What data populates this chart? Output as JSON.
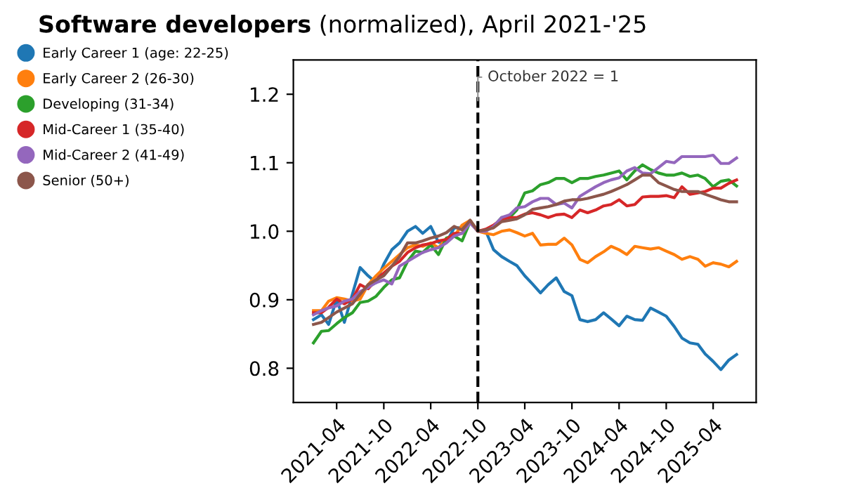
{
  "chart_data": {
    "type": "line",
    "title": "Software developers",
    "subtitle": "(normalized), April 2021-'25",
    "x": [
      "2021-01",
      "2021-02",
      "2021-03",
      "2021-04",
      "2021-05",
      "2021-06",
      "2021-07",
      "2021-08",
      "2021-09",
      "2021-10",
      "2021-11",
      "2021-12",
      "2022-01",
      "2022-02",
      "2022-03",
      "2022-04",
      "2022-05",
      "2022-06",
      "2022-07",
      "2022-08",
      "2022-09",
      "2022-10",
      "2022-11",
      "2022-12",
      "2023-01",
      "2023-02",
      "2023-03",
      "2023-04",
      "2023-05",
      "2023-06",
      "2023-07",
      "2023-08",
      "2023-09",
      "2023-10",
      "2023-11",
      "2023-12",
      "2024-01",
      "2024-02",
      "2024-03",
      "2024-04",
      "2024-05",
      "2024-06",
      "2024-07",
      "2024-08",
      "2024-09",
      "2024-10",
      "2024-11",
      "2024-12",
      "2025-01",
      "2025-02",
      "2025-03",
      "2025-04",
      "2025-05",
      "2025-06",
      "2025-07"
    ],
    "series": [
      {
        "name": "Early Career 1 (age: 22-25)",
        "color": "#1f77b4",
        "values": [
          0.871,
          0.878,
          0.864,
          0.901,
          0.867,
          0.908,
          0.947,
          0.935,
          0.925,
          0.952,
          0.973,
          0.983,
          1.0,
          1.007,
          0.997,
          1.007,
          0.984,
          0.984,
          1.005,
          1.005,
          1.016,
          1.0,
          1.0,
          0.973,
          0.963,
          0.956,
          0.95,
          0.935,
          0.923,
          0.91,
          0.922,
          0.932,
          0.912,
          0.906,
          0.871,
          0.868,
          0.871,
          0.881,
          0.872,
          0.862,
          0.876,
          0.871,
          0.87,
          0.888,
          0.882,
          0.876,
          0.861,
          0.844,
          0.837,
          0.835,
          0.821,
          0.81,
          0.798,
          0.812,
          0.82
        ]
      },
      {
        "name": "Early Career 2 (26-30)",
        "color": "#ff7f0e",
        "values": [
          0.884,
          0.884,
          0.898,
          0.903,
          0.901,
          0.898,
          0.901,
          0.922,
          0.935,
          0.946,
          0.956,
          0.966,
          0.976,
          0.98,
          0.978,
          0.983,
          0.976,
          0.99,
          0.993,
          1.009,
          1.016,
          1.0,
          0.997,
          0.995,
          1.0,
          1.002,
          0.998,
          0.993,
          0.997,
          0.98,
          0.981,
          0.981,
          0.99,
          0.98,
          0.959,
          0.954,
          0.963,
          0.97,
          0.978,
          0.973,
          0.966,
          0.978,
          0.976,
          0.974,
          0.976,
          0.971,
          0.966,
          0.959,
          0.963,
          0.959,
          0.949,
          0.954,
          0.952,
          0.948,
          0.956
        ]
      },
      {
        "name": "Developing (31-34)",
        "color": "#2ca02c",
        "values": [
          0.837,
          0.854,
          0.855,
          0.865,
          0.874,
          0.881,
          0.896,
          0.898,
          0.905,
          0.918,
          0.929,
          0.932,
          0.956,
          0.971,
          0.969,
          0.98,
          0.966,
          0.99,
          0.993,
          0.986,
          1.014,
          1.0,
          1.002,
          1.007,
          1.02,
          1.02,
          1.031,
          1.056,
          1.059,
          1.068,
          1.071,
          1.077,
          1.077,
          1.071,
          1.077,
          1.077,
          1.08,
          1.082,
          1.085,
          1.088,
          1.075,
          1.088,
          1.097,
          1.09,
          1.085,
          1.082,
          1.082,
          1.085,
          1.08,
          1.082,
          1.077,
          1.065,
          1.073,
          1.075,
          1.066
        ]
      },
      {
        "name": "Mid-Career 1 (35-40)",
        "color": "#d62728",
        "values": [
          0.881,
          0.881,
          0.889,
          0.901,
          0.894,
          0.901,
          0.922,
          0.916,
          0.929,
          0.939,
          0.949,
          0.956,
          0.969,
          0.976,
          0.98,
          0.982,
          0.986,
          0.988,
          0.997,
          0.997,
          1.014,
          1.0,
          1.003,
          1.009,
          1.017,
          1.02,
          1.02,
          1.025,
          1.027,
          1.024,
          1.02,
          1.024,
          1.025,
          1.02,
          1.031,
          1.027,
          1.031,
          1.037,
          1.039,
          1.046,
          1.037,
          1.039,
          1.05,
          1.051,
          1.051,
          1.052,
          1.049,
          1.065,
          1.054,
          1.056,
          1.058,
          1.063,
          1.063,
          1.07,
          1.075
        ]
      },
      {
        "name": "Mid-Career 2 (41-49)",
        "color": "#9467bd",
        "values": [
          0.878,
          0.884,
          0.888,
          0.891,
          0.898,
          0.901,
          0.912,
          0.918,
          0.925,
          0.929,
          0.923,
          0.949,
          0.956,
          0.963,
          0.969,
          0.973,
          0.976,
          0.983,
          0.993,
          0.997,
          1.012,
          1.0,
          1.0,
          1.007,
          1.02,
          1.024,
          1.034,
          1.036,
          1.043,
          1.048,
          1.048,
          1.039,
          1.041,
          1.034,
          1.051,
          1.058,
          1.065,
          1.071,
          1.075,
          1.078,
          1.088,
          1.093,
          1.085,
          1.084,
          1.093,
          1.102,
          1.1,
          1.109,
          1.109,
          1.109,
          1.109,
          1.111,
          1.099,
          1.099,
          1.107
        ]
      },
      {
        "name": "Senior (50+)",
        "color": "#8c564b",
        "values": [
          0.864,
          0.867,
          0.874,
          0.882,
          0.888,
          0.894,
          0.908,
          0.922,
          0.929,
          0.935,
          0.949,
          0.963,
          0.983,
          0.983,
          0.986,
          0.99,
          0.993,
          0.998,
          1.007,
          1.002,
          1.016,
          1.0,
          1.002,
          1.005,
          1.014,
          1.016,
          1.018,
          1.024,
          1.032,
          1.034,
          1.036,
          1.039,
          1.044,
          1.046,
          1.046,
          1.048,
          1.051,
          1.054,
          1.058,
          1.063,
          1.068,
          1.075,
          1.082,
          1.082,
          1.071,
          1.066,
          1.061,
          1.058,
          1.058,
          1.058,
          1.054,
          1.05,
          1.046,
          1.043,
          1.043
        ]
      }
    ],
    "xlim": [
      "2020-10-15",
      "2025-09-15"
    ],
    "xticks": [
      {
        "value": "2021-04",
        "label": "2021-04"
      },
      {
        "value": "2021-10",
        "label": "2021-10"
      },
      {
        "value": "2022-04",
        "label": "2022-04"
      },
      {
        "value": "2022-10",
        "label": "2022-10"
      },
      {
        "value": "2023-04",
        "label": "2023-04"
      },
      {
        "value": "2023-10",
        "label": "2023-10"
      },
      {
        "value": "2024-04",
        "label": "2024-04"
      },
      {
        "value": "2024-10",
        "label": "2024-10"
      },
      {
        "value": "2025-04",
        "label": "2025-04"
      }
    ],
    "ylim": [
      0.75,
      1.25
    ],
    "yticks": [
      {
        "value": 0.8,
        "label": "0.8"
      },
      {
        "value": 0.9,
        "label": "0.9"
      },
      {
        "value": 1.0,
        "label": "1.0"
      },
      {
        "value": 1.1,
        "label": "1.1"
      },
      {
        "value": 1.2,
        "label": "1.2"
      }
    ],
    "ref_lines": [
      {
        "axis": "x",
        "value": "2022-10",
        "label": "October 2022 = 1",
        "color": "#000000",
        "line_style": "dashed"
      }
    ],
    "legend": "left",
    "grid": false,
    "marker": "none",
    "line_style": "solid"
  }
}
